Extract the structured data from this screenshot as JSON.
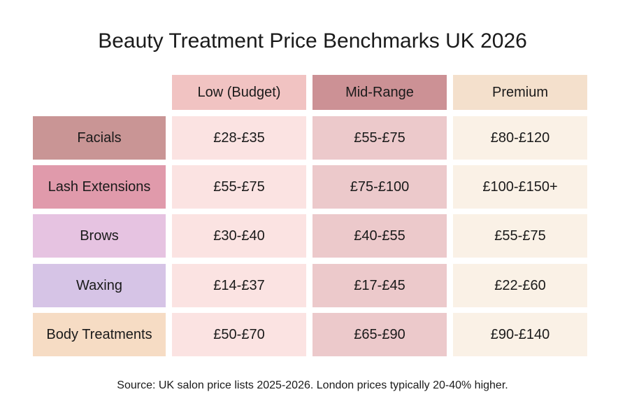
{
  "title": "Beauty Treatment Price Benchmarks UK 2026",
  "columns": [
    {
      "label": "Low (Budget)",
      "header_color": "#f1c3c2",
      "cell_color": "#fbe3e2"
    },
    {
      "label": "Mid-Range",
      "header_color": "#cc9195",
      "cell_color": "#ecc9cb"
    },
    {
      "label": "Premium",
      "header_color": "#f4e0cc",
      "cell_color": "#faf1e6"
    }
  ],
  "rows": [
    {
      "label": "Facials",
      "color": "#c99595",
      "values": [
        "£28-£35",
        "£55-£75",
        "£80-£120"
      ]
    },
    {
      "label": "Lash Extensions",
      "color": "#e09aab",
      "values": [
        "£55-£75",
        "£75-£100",
        "£100-£150+"
      ]
    },
    {
      "label": "Brows",
      "color": "#e6c3e1",
      "values": [
        "£30-£40",
        "£40-£55",
        "£55-£75"
      ]
    },
    {
      "label": "Waxing",
      "color": "#d6c4e6",
      "values": [
        "£14-£37",
        "£17-£45",
        "£22-£60"
      ]
    },
    {
      "label": "Body Treatments",
      "color": "#f6dcc4",
      "values": [
        "£50-£70",
        "£65-£90",
        "£90-£140"
      ]
    }
  ],
  "source": "Source: UK salon price lists 2025-2026. London prices typically 20-40% higher."
}
